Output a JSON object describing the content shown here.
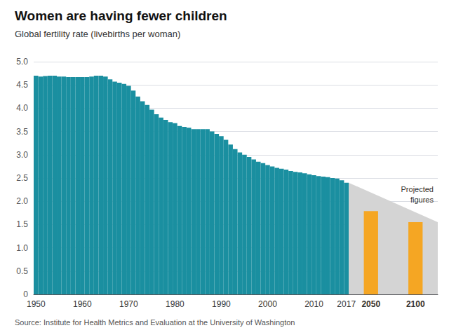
{
  "chart_data": {
    "type": "bar",
    "title": "Women are having fewer children",
    "subtitle": "Global fertility rate (livebirths per woman)",
    "source": "Source: Institute for Health Metrics and Evaluation at the University of Washington",
    "annotation": "Projected\nfigures",
    "categories": [
      "1950",
      null,
      null,
      null,
      null,
      null,
      null,
      null,
      null,
      null,
      "1960",
      null,
      null,
      null,
      null,
      null,
      null,
      null,
      null,
      null,
      "1970",
      null,
      null,
      null,
      null,
      null,
      null,
      null,
      null,
      null,
      "1980",
      null,
      null,
      null,
      null,
      null,
      null,
      null,
      null,
      null,
      "1990",
      null,
      null,
      null,
      null,
      null,
      null,
      null,
      null,
      null,
      "2000",
      null,
      null,
      null,
      null,
      null,
      null,
      null,
      null,
      null,
      "2010",
      null,
      null,
      null,
      null,
      null,
      null,
      "2017",
      "2050",
      "2100"
    ],
    "series": [
      {
        "color": "#1a8fa0",
        "values": [
          4.7,
          4.68,
          4.69,
          4.7,
          4.7,
          4.68,
          4.68,
          4.67,
          4.67,
          4.67,
          4.67,
          4.67,
          4.68,
          4.7,
          4.7,
          4.68,
          4.62,
          4.57,
          4.55,
          4.52,
          4.48,
          4.38,
          4.25,
          4.15,
          4.07,
          3.97,
          3.87,
          3.8,
          3.75,
          3.7,
          3.68,
          3.62,
          3.6,
          3.58,
          3.55,
          3.55,
          3.55,
          3.55,
          3.5,
          3.45,
          3.4,
          3.32,
          3.22,
          3.12,
          3.05,
          3.0,
          2.95,
          2.9,
          2.85,
          2.82,
          2.78,
          2.75,
          2.72,
          2.7,
          2.68,
          2.65,
          2.63,
          2.62,
          2.6,
          2.58,
          2.56,
          2.54,
          2.53,
          2.52,
          2.5,
          2.49,
          2.45,
          2.4,
          null,
          null
        ]
      },
      {
        "color": "#f5a623",
        "values": [
          null,
          null,
          null,
          null,
          null,
          null,
          null,
          null,
          null,
          null,
          null,
          null,
          null,
          null,
          null,
          null,
          null,
          null,
          null,
          null,
          null,
          null,
          null,
          null,
          null,
          null,
          null,
          null,
          null,
          null,
          null,
          null,
          null,
          null,
          null,
          null,
          null,
          null,
          null,
          null,
          null,
          null,
          null,
          null,
          null,
          null,
          null,
          null,
          null,
          null,
          null,
          null,
          null,
          null,
          null,
          null,
          null,
          null,
          null,
          null,
          null,
          null,
          null,
          null,
          null,
          null,
          null,
          null,
          1.79,
          1.55
        ]
      }
    ],
    "projected_range": {
      "values": [
        2.4,
        1.55
      ],
      "color": "#d4d4d4"
    },
    "ylim": [
      0,
      5.0
    ],
    "yticks": [
      0,
      0.5,
      {
        "value": 1.0,
        "label": "1.0"
      },
      1.5,
      {
        "value": 2.0,
        "label": "2.0"
      },
      2.5,
      {
        "value": 3.0,
        "label": "3.0"
      },
      3.5,
      {
        "value": 4.0,
        "label": "4.0"
      },
      4.5,
      {
        "value": 5.0,
        "label": "5.0"
      }
    ],
    "grid": true
  }
}
